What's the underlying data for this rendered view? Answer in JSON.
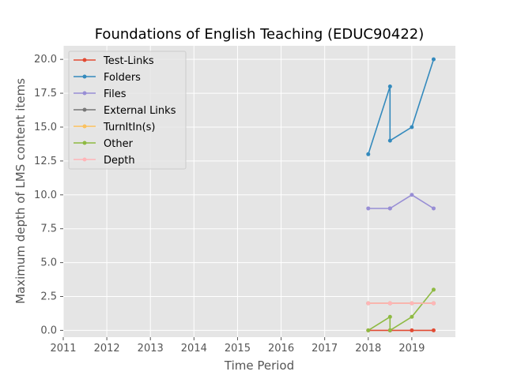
{
  "chart_data": {
    "type": "line",
    "title": "Foundations of English Teaching (EDUC90422)",
    "xlabel": "Time Period",
    "ylabel": "Maximum depth of LMS content items",
    "xlim": [
      2011,
      2020
    ],
    "ylim": [
      -0.5,
      21
    ],
    "x_ticks": [
      2011,
      2012,
      2013,
      2014,
      2015,
      2016,
      2017,
      2018,
      2019
    ],
    "y_ticks": [
      0.0,
      2.5,
      5.0,
      7.5,
      10.0,
      12.5,
      15.0,
      17.5,
      20.0
    ],
    "x_tick_labels": [
      "2011",
      "2012",
      "2013",
      "2014",
      "2015",
      "2016",
      "2017",
      "2018",
      "2019"
    ],
    "y_tick_labels": [
      "0.0",
      "2.5",
      "5.0",
      "7.5",
      "10.0",
      "12.5",
      "15.0",
      "17.5",
      "20.0"
    ],
    "grid": true,
    "legend_position": "top-left",
    "x": [
      2018.0,
      2018.5,
      2018.5,
      2019.0,
      2019.5
    ],
    "series": [
      {
        "name": "Test-Links",
        "color": "#E24A33",
        "values": [
          0,
          0,
          0,
          0,
          0
        ]
      },
      {
        "name": "Folders",
        "color": "#348ABD",
        "values": [
          13,
          18,
          14,
          15,
          20
        ]
      },
      {
        "name": "Files",
        "color": "#988ED5",
        "values": [
          9,
          9,
          9,
          10,
          9
        ]
      },
      {
        "name": "External Links",
        "color": "#777777",
        "values": [
          2,
          2,
          2,
          2,
          2
        ]
      },
      {
        "name": "TurnItIn(s)",
        "color": "#FBC15E",
        "values": [
          2,
          2,
          2,
          2,
          2
        ]
      },
      {
        "name": "Other",
        "color": "#8EBA42",
        "values": [
          0,
          1,
          0,
          1,
          3
        ]
      },
      {
        "name": "Depth",
        "color": "#FFB5B8",
        "values": [
          2,
          2,
          2,
          2,
          2
        ]
      }
    ]
  }
}
